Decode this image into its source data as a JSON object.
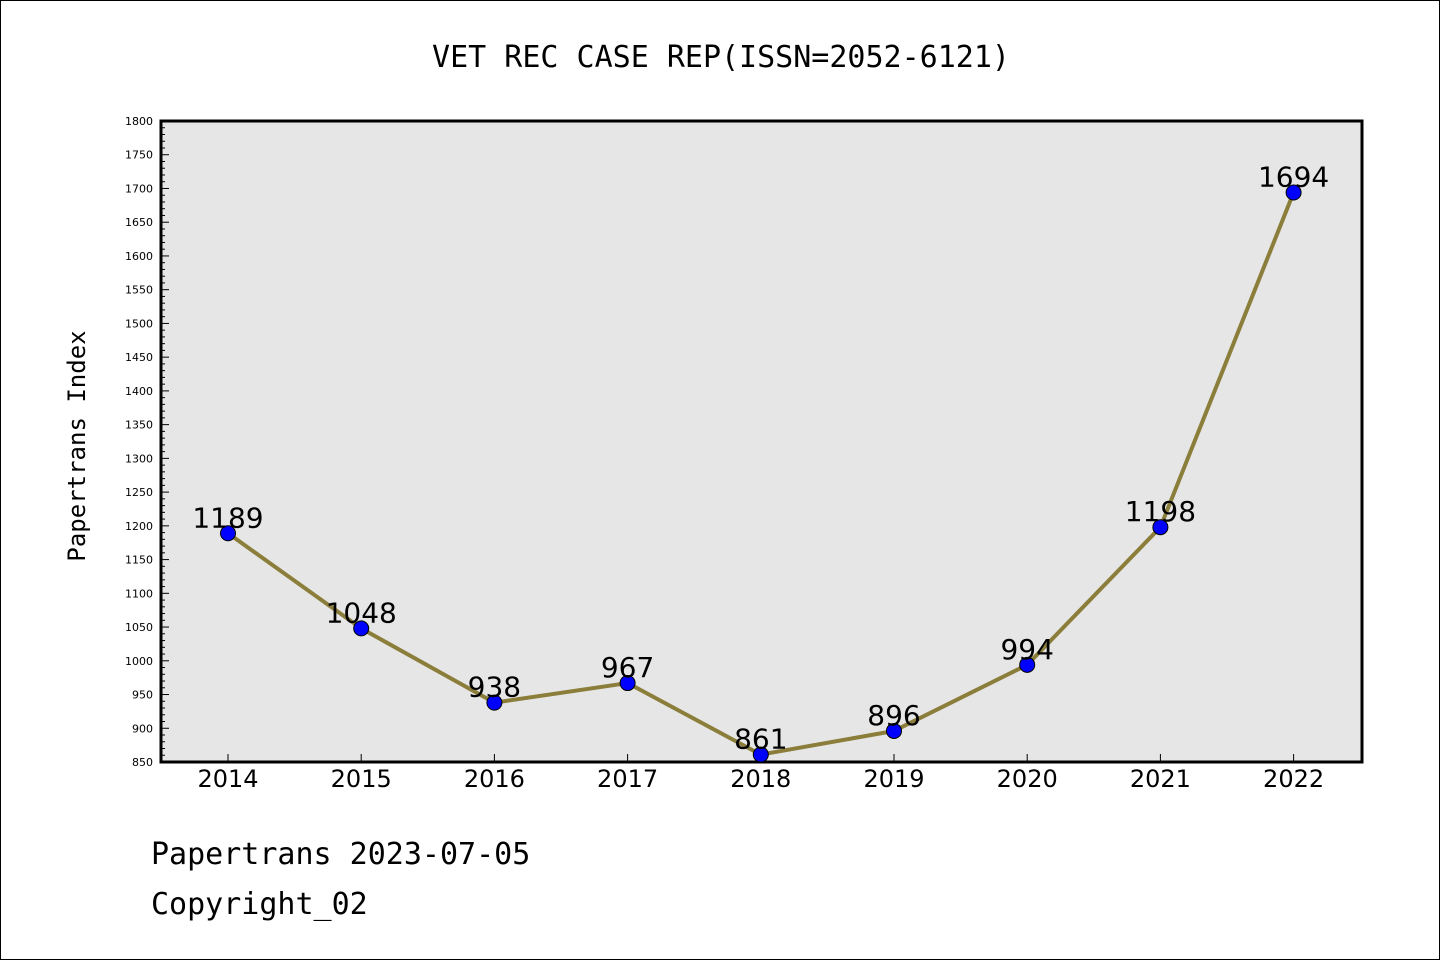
{
  "chart_data": {
    "type": "line",
    "title": "VET REC CASE REP(ISSN=2052-6121)",
    "xlabel": "",
    "ylabel": "Papertrans Index",
    "categories": [
      "2014",
      "2015",
      "2016",
      "2017",
      "2018",
      "2019",
      "2020",
      "2021",
      "2022"
    ],
    "series": [
      {
        "values": [
          1189,
          1048,
          938,
          967,
          861,
          896,
          994,
          1198,
          1694
        ]
      }
    ],
    "data_labels": [
      "1189",
      "1048",
      "938",
      "967",
      "861",
      "896",
      "994",
      "1198",
      "1694"
    ],
    "ylim": [
      850,
      1800
    ],
    "yticks": [
      850,
      900,
      950,
      1000,
      1050,
      1100,
      1150,
      1200,
      1250,
      1300,
      1350,
      1400,
      1450,
      1500,
      1550,
      1600,
      1650,
      1700,
      1750,
      1800
    ],
    "grid": false,
    "legend": "none",
    "colors": {
      "line": "#8b7d3a",
      "marker_fill": "#0000ff",
      "plot_background": "#e6e6e6",
      "axes": "#000000"
    }
  },
  "footer": {
    "date_line": "Papertrans 2023-07-05",
    "copyright_line": "Copyright_02"
  }
}
